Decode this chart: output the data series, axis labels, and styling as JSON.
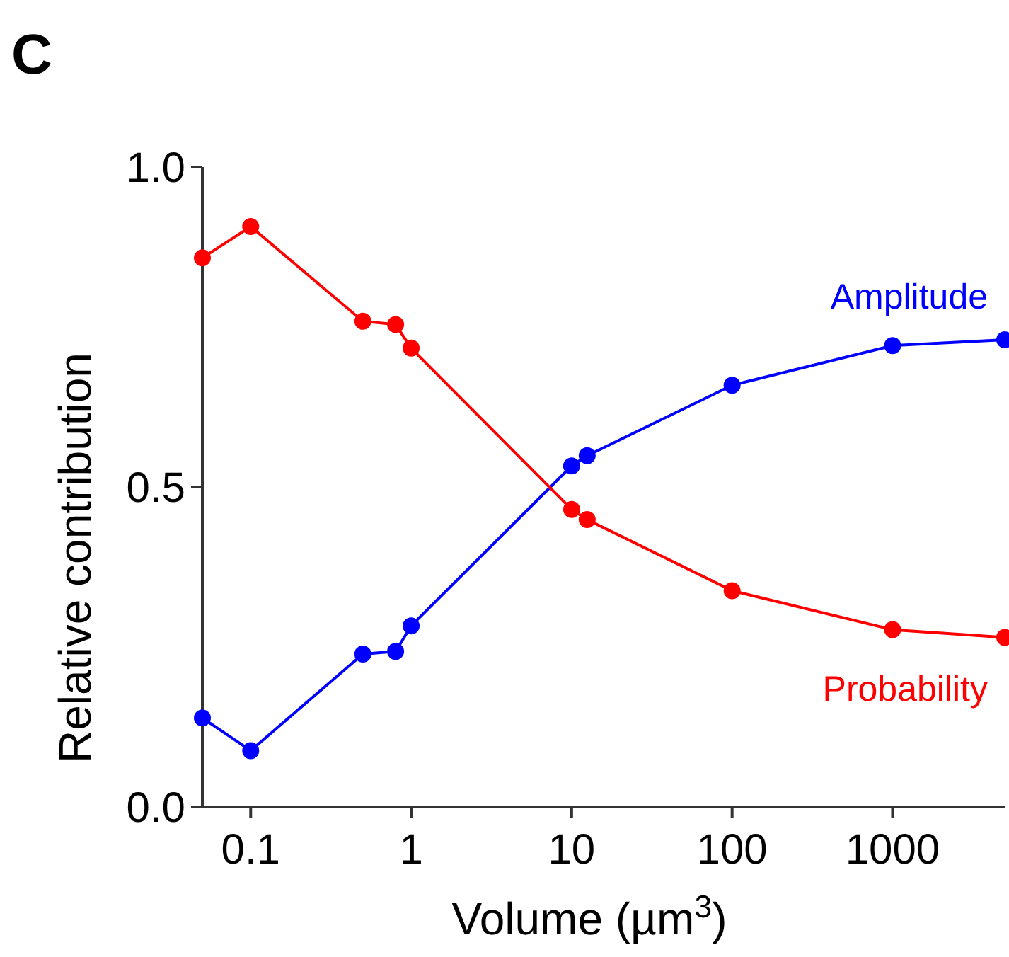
{
  "chart_data": {
    "type": "line",
    "xlabel": "Volume (µm$^{3}$)",
    "ylabel": "Relative contribution",
    "annotations": [
      "C"
    ],
    "log": "x",
    "xlim": [
      0.05,
      5000
    ],
    "xticks": [
      0.1,
      1,
      10,
      100,
      1000
    ],
    "ylim": [
      0,
      1
    ],
    "yticks": [
      {
        "value": 0,
        "label": "0.0"
      },
      0.5,
      {
        "value": 1,
        "label": "1.0"
      }
    ],
    "grid": false,
    "marker": "circle",
    "line_style": "solid",
    "x": [
      0.05,
      0.1,
      0.5,
      0.8,
      1,
      10,
      12.5,
      100,
      1000,
      5000
    ],
    "series": [
      {
        "name": "Amplitude",
        "color": "#0000ff",
        "values": [
          0.139,
          0.088,
          0.239,
          0.243,
          0.283,
          0.533,
          0.549,
          0.659,
          0.721,
          0.73
        ]
      },
      {
        "name": "Probability",
        "color": "#ff0000",
        "values": [
          0.858,
          0.907,
          0.759,
          0.754,
          0.717,
          0.465,
          0.449,
          0.338,
          0.277,
          0.265
        ]
      }
    ]
  }
}
